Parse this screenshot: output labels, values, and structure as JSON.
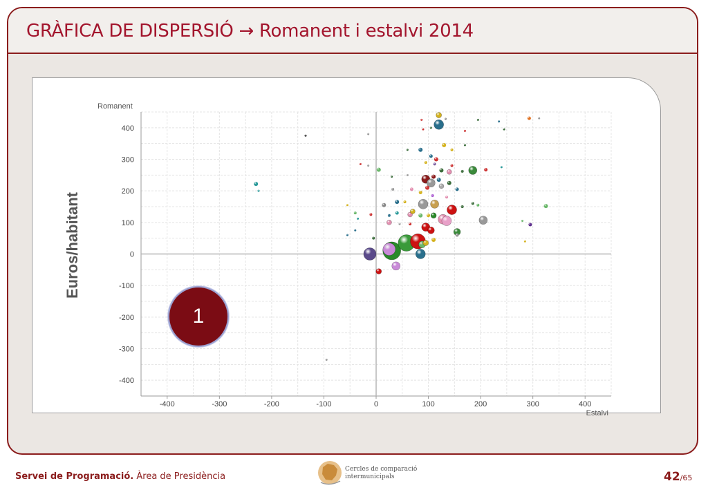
{
  "header": {
    "title": "GRÀFICA DE DISPERSIÓ → Romanent i estalvi 2014"
  },
  "side_label": "Euros/habitant",
  "badge": "1",
  "footer": {
    "org": "Servei de Programació.",
    "area": " Àrea de Presidència",
    "logo_line1": "Cercles de comparació",
    "logo_line2": "intermunicipals",
    "page_current": "42",
    "page_total": "/65"
  },
  "colors": {
    "accent": "#8b1c1c",
    "title": "#a3152d",
    "badge": "#7b0c14"
  },
  "chart_data": {
    "type": "scatter",
    "xlabel": "Estalvi",
    "ylabel": "Romanent",
    "xlim": [
      -450,
      450
    ],
    "ylim": [
      -450,
      450
    ],
    "xticks": [
      -400,
      -300,
      -200,
      -100,
      0,
      100,
      200,
      300,
      400
    ],
    "yticks": [
      400,
      300,
      200,
      100,
      0,
      -100,
      -200,
      -300,
      -400
    ],
    "grid": true,
    "points": [
      {
        "x": 120,
        "y": 440,
        "r": 4,
        "c": "#d4b21e"
      },
      {
        "x": 120,
        "y": 410,
        "r": 7,
        "c": "#2a6f8c"
      },
      {
        "x": 87,
        "y": 425,
        "r": 1.5,
        "c": "#cc3333"
      },
      {
        "x": 90,
        "y": 395,
        "r": 1.5,
        "c": "#cc3333"
      },
      {
        "x": 105,
        "y": 400,
        "r": 1.5,
        "c": "#3a6b3a"
      },
      {
        "x": 133,
        "y": 428,
        "r": 1.5,
        "c": "#888888"
      },
      {
        "x": 170,
        "y": 390,
        "r": 1.5,
        "c": "#cc3333"
      },
      {
        "x": 195,
        "y": 425,
        "r": 1.5,
        "c": "#3a6b3a"
      },
      {
        "x": 235,
        "y": 420,
        "r": 1.5,
        "c": "#2a6f8c"
      },
      {
        "x": 245,
        "y": 395,
        "r": 1.5,
        "c": "#3a6b3a"
      },
      {
        "x": 293,
        "y": 430,
        "r": 2.5,
        "c": "#e07020"
      },
      {
        "x": 312,
        "y": 430,
        "r": 1.5,
        "c": "#999999"
      },
      {
        "x": -135,
        "y": 375,
        "r": 1.5,
        "c": "#333333"
      },
      {
        "x": -15,
        "y": 380,
        "r": 1.5,
        "c": "#999999"
      },
      {
        "x": 60,
        "y": 330,
        "r": 1.5,
        "c": "#3a6b3a"
      },
      {
        "x": 85,
        "y": 330,
        "r": 3,
        "c": "#2a6f8c"
      },
      {
        "x": 105,
        "y": 310,
        "r": 2.5,
        "c": "#2a6f8c"
      },
      {
        "x": 115,
        "y": 300,
        "r": 3,
        "c": "#cc3333"
      },
      {
        "x": 130,
        "y": 345,
        "r": 3,
        "c": "#d4b21e"
      },
      {
        "x": 145,
        "y": 330,
        "r": 2,
        "c": "#d4b21e"
      },
      {
        "x": 170,
        "y": 345,
        "r": 1.5,
        "c": "#3a6b3a"
      },
      {
        "x": 95,
        "y": 290,
        "r": 2,
        "c": "#d4b21e"
      },
      {
        "x": 112,
        "y": 285,
        "r": 2,
        "c": "#7a5da0"
      },
      {
        "x": 125,
        "y": 265,
        "r": 3,
        "c": "#3a6b3a"
      },
      {
        "x": 145,
        "y": 280,
        "r": 2,
        "c": "#cc3333"
      },
      {
        "x": 165,
        "y": 262,
        "r": 2,
        "c": "#3a6b3a"
      },
      {
        "x": -30,
        "y": 285,
        "r": 1.5,
        "c": "#cc3333"
      },
      {
        "x": -15,
        "y": 280,
        "r": 1.5,
        "c": "#999999"
      },
      {
        "x": 5,
        "y": 267,
        "r": 3,
        "c": "#6bb86b"
      },
      {
        "x": 110,
        "y": 245,
        "r": 3,
        "c": "#8b1c1c"
      },
      {
        "x": 140,
        "y": 260,
        "r": 3.5,
        "c": "#e38fb0"
      },
      {
        "x": 185,
        "y": 265,
        "r": 6,
        "c": "#3a8a3a"
      },
      {
        "x": 210,
        "y": 267,
        "r": 2.5,
        "c": "#cc3333"
      },
      {
        "x": 240,
        "y": 275,
        "r": 1.5,
        "c": "#2a9a9a"
      },
      {
        "x": 30,
        "y": 245,
        "r": 1.5,
        "c": "#3a6b3a"
      },
      {
        "x": 60,
        "y": 250,
        "r": 1.5,
        "c": "#999999"
      },
      {
        "x": 95,
        "y": 237,
        "r": 6,
        "c": "#8b1c1c"
      },
      {
        "x": 105,
        "y": 225,
        "r": 6,
        "c": "#999999"
      },
      {
        "x": 120,
        "y": 235,
        "r": 3,
        "c": "#2a6f8c"
      },
      {
        "x": 140,
        "y": 225,
        "r": 3,
        "c": "#3a6b3a"
      },
      {
        "x": 155,
        "y": 205,
        "r": 2.5,
        "c": "#2a6f8c"
      },
      {
        "x": 125,
        "y": 215,
        "r": 3.5,
        "c": "#aaaaaa"
      },
      {
        "x": 98,
        "y": 210,
        "r": 3,
        "c": "#cc3333"
      },
      {
        "x": 68,
        "y": 205,
        "r": 2.5,
        "c": "#e38fb0"
      },
      {
        "x": 32,
        "y": 205,
        "r": 2,
        "c": "#999999"
      },
      {
        "x": 85,
        "y": 195,
        "r": 2.5,
        "c": "#d4b21e"
      },
      {
        "x": 108,
        "y": 185,
        "r": 2,
        "c": "#a855d0"
      },
      {
        "x": 135,
        "y": 180,
        "r": 2,
        "c": "#e38fb0"
      },
      {
        "x": -230,
        "y": 222,
        "r": 3,
        "c": "#2a9a9a"
      },
      {
        "x": -225,
        "y": 200,
        "r": 1.5,
        "c": "#2a9a9a"
      },
      {
        "x": 15,
        "y": 155,
        "r": 3,
        "c": "#888888"
      },
      {
        "x": 40,
        "y": 165,
        "r": 3,
        "c": "#2a6f8c"
      },
      {
        "x": 55,
        "y": 165,
        "r": 2,
        "c": "#d4b21e"
      },
      {
        "x": 90,
        "y": 158,
        "r": 7,
        "c": "#999999"
      },
      {
        "x": 112,
        "y": 158,
        "r": 6,
        "c": "#c8a050"
      },
      {
        "x": 145,
        "y": 140,
        "r": 7,
        "c": "#cc1111"
      },
      {
        "x": 165,
        "y": 150,
        "r": 2,
        "c": "#3a6b3a"
      },
      {
        "x": 185,
        "y": 160,
        "r": 2,
        "c": "#3a6b3a"
      },
      {
        "x": 195,
        "y": 155,
        "r": 2,
        "c": "#6bb86b"
      },
      {
        "x": 325,
        "y": 152,
        "r": 3,
        "c": "#6bb86b"
      },
      {
        "x": -55,
        "y": 155,
        "r": 1.5,
        "c": "#d4b21e"
      },
      {
        "x": -40,
        "y": 130,
        "r": 2,
        "c": "#6bb86b"
      },
      {
        "x": -35,
        "y": 112,
        "r": 1.5,
        "c": "#2a9a9a"
      },
      {
        "x": -10,
        "y": 125,
        "r": 2,
        "c": "#cc3333"
      },
      {
        "x": 25,
        "y": 122,
        "r": 2,
        "c": "#2a6f8c"
      },
      {
        "x": 40,
        "y": 130,
        "r": 2.5,
        "c": "#2a9a9a"
      },
      {
        "x": 65,
        "y": 125,
        "r": 3.5,
        "c": "#e38fb0"
      },
      {
        "x": 70,
        "y": 135,
        "r": 3.5,
        "c": "#d4b21e"
      },
      {
        "x": 85,
        "y": 122,
        "r": 3,
        "c": "#6bb86b"
      },
      {
        "x": 100,
        "y": 122,
        "r": 2.5,
        "c": "#d4b21e"
      },
      {
        "x": 110,
        "y": 122,
        "r": 4,
        "c": "#2a8a2a"
      },
      {
        "x": 25,
        "y": 100,
        "r": 3.5,
        "c": "#e38fb0"
      },
      {
        "x": 45,
        "y": 95,
        "r": 1.5,
        "c": "#999999"
      },
      {
        "x": 65,
        "y": 95,
        "r": 2,
        "c": "#cc3333"
      },
      {
        "x": 95,
        "y": 85,
        "r": 6,
        "c": "#cc1111"
      },
      {
        "x": 105,
        "y": 75,
        "r": 5,
        "c": "#cc1111"
      },
      {
        "x": 128,
        "y": 110,
        "r": 7,
        "c": "#e38fb0"
      },
      {
        "x": 135,
        "y": 105,
        "r": 7,
        "c": "#e8a0c8"
      },
      {
        "x": 155,
        "y": 70,
        "r": 5,
        "c": "#3a8a3a"
      },
      {
        "x": 155,
        "y": 60,
        "r": 2.5,
        "c": "#999999"
      },
      {
        "x": 205,
        "y": 107,
        "r": 6,
        "c": "#999999"
      },
      {
        "x": 280,
        "y": 105,
        "r": 1.5,
        "c": "#6bb86b"
      },
      {
        "x": 295,
        "y": 93,
        "r": 2.5,
        "c": "#5a2a8a"
      },
      {
        "x": -55,
        "y": 60,
        "r": 1.5,
        "c": "#2a6f8c"
      },
      {
        "x": -40,
        "y": 75,
        "r": 1.5,
        "c": "#2a6f8c"
      },
      {
        "x": -5,
        "y": 50,
        "r": 2,
        "c": "#3a6b3a"
      },
      {
        "x": 285,
        "y": 40,
        "r": 1.5,
        "c": "#d4b21e"
      },
      {
        "x": 30,
        "y": 10,
        "r": 13,
        "c": "#2a8a2a"
      },
      {
        "x": 25,
        "y": 15,
        "r": 9,
        "c": "#c98ad8"
      },
      {
        "x": 58,
        "y": 35,
        "r": 12,
        "c": "#3a9a3a"
      },
      {
        "x": 80,
        "y": 40,
        "r": 11,
        "c": "#cc1111"
      },
      {
        "x": 88,
        "y": 30,
        "r": 5,
        "c": "#6bb86b"
      },
      {
        "x": 95,
        "y": 35,
        "r": 4,
        "c": "#d4b21e"
      },
      {
        "x": 110,
        "y": 45,
        "r": 3,
        "c": "#d4b21e"
      },
      {
        "x": -12,
        "y": 0,
        "r": 9,
        "c": "#5a4a8a"
      },
      {
        "x": 85,
        "y": 0,
        "r": 7,
        "c": "#2a6f8c"
      },
      {
        "x": 38,
        "y": -38,
        "r": 6,
        "c": "#c98ad8"
      },
      {
        "x": 5,
        "y": -55,
        "r": 4,
        "c": "#cc1111"
      },
      {
        "x": -95,
        "y": -335,
        "r": 1.5,
        "c": "#999999"
      }
    ]
  }
}
